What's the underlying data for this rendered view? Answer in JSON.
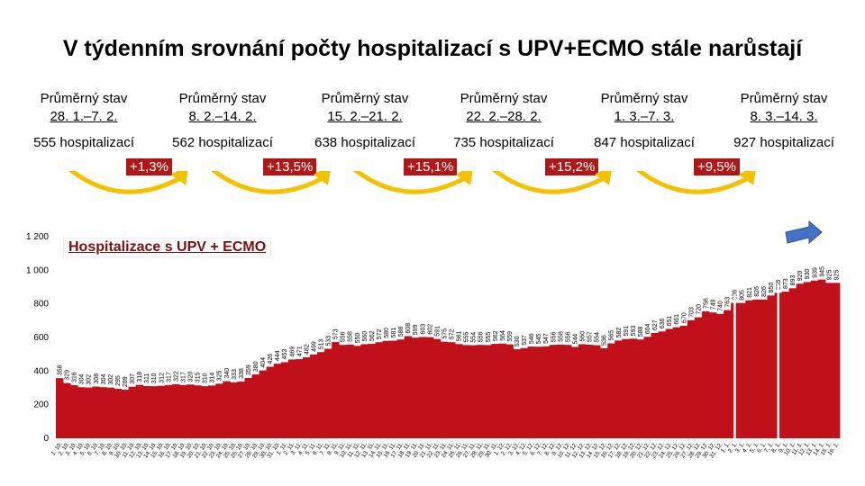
{
  "title": "V týdenním srovnání počty hospitalizací s UPV+ECMO stále narůstají",
  "periods": [
    {
      "label": "Průměrný stav",
      "range": "28. 1.–7. 2.",
      "count": "555 hospitalizací"
    },
    {
      "label": "Průměrný stav",
      "range": "8. 2.–14. 2.",
      "count": "562 hospitalizací"
    },
    {
      "label": "Průměrný stav",
      "range": "15. 2.–21. 2.",
      "count": "638 hospitalizací"
    },
    {
      "label": "Průměrný stav",
      "range": "22. 2.–28. 2.",
      "count": "735 hospitalizací"
    },
    {
      "label": "Průměrný stav",
      "range": "1. 3.–7. 3.",
      "count": "847 hospitalizací"
    },
    {
      "label": "Průměrný stav",
      "range": "8. 3.–14. 3.",
      "count": "927 hospitalizací"
    }
  ],
  "changes": [
    "+1,3%",
    "+13,5%",
    "+15,1%",
    "+15,2%",
    "+9,5%"
  ],
  "colors": {
    "bar": "#c0111a",
    "arrow": "#f2c200",
    "change_bg": "#b01818",
    "blue_arrow": "#4472c4"
  },
  "chart_data": {
    "type": "bar",
    "series_label": "Hospitalizace s UPV + ECMO",
    "ylim": [
      0,
      1200
    ],
    "yticks": [
      "0",
      "200",
      "400",
      "600",
      "800",
      "1 000",
      "1 200"
    ],
    "values": [
      358,
      329,
      316,
      304,
      302,
      308,
      304,
      302,
      295,
      289,
      307,
      318,
      311,
      310,
      312,
      317,
      322,
      317,
      320,
      315,
      310,
      314,
      325,
      340,
      333,
      338,
      359,
      380,
      404,
      426,
      444,
      453,
      469,
      471,
      482,
      499,
      513,
      533,
      573,
      556,
      558,
      550,
      560,
      562,
      572,
      580,
      581,
      588,
      608,
      599,
      603,
      602,
      591,
      575,
      572,
      561,
      555,
      554,
      556,
      555,
      562,
      564,
      559,
      530,
      537,
      546,
      545,
      547,
      556,
      558,
      556,
      544,
      560,
      557,
      554,
      536,
      565,
      582,
      591,
      593,
      588,
      604,
      627,
      636,
      651,
      661,
      670,
      703,
      720,
      756,
      749,
      740,
      763,
      806,
      805,
      821,
      826,
      826,
      850,
      866,
      873,
      893,
      920,
      930,
      939,
      945,
      925,
      925
    ],
    "x_tick_labels": [
      "1. 10.",
      "2. 10.",
      "3. 10.",
      "4. 10.",
      "5. 10.",
      "6. 10.",
      "7. 10.",
      "8. 10.",
      "9. 10.",
      "10. 10.",
      "11. 10.",
      "12. 10.",
      "13. 10.",
      "14. 10.",
      "15. 10.",
      "16. 10.",
      "17. 10.",
      "18. 10.",
      "19. 10.",
      "20. 10.",
      "21. 10.",
      "22. 10.",
      "23. 10.",
      "24. 10.",
      "25. 10.",
      "26. 10.",
      "27. 10.",
      "28. 10.",
      "29. 10.",
      "30. 10.",
      "31. 10.",
      "1. 11.",
      "2. 11.",
      "3. 11.",
      "4. 11.",
      "5. 11.",
      "6. 11.",
      "7. 11.",
      "8. 11.",
      "9. 11.",
      "10. 11.",
      "11. 11.",
      "12. 11.",
      "13. 11.",
      "14. 11.",
      "15. 11.",
      "16. 11.",
      "17. 11.",
      "18. 11.",
      "19. 11.",
      "20. 11.",
      "21. 11.",
      "22. 11.",
      "23. 11.",
      "24. 11.",
      "25. 11.",
      "26. 11.",
      "27. 11.",
      "28. 11.",
      "29. 11.",
      "30. 11.",
      "1. 12.",
      "2. 12.",
      "3. 12.",
      "4. 12.",
      "5. 12.",
      "6. 12.",
      "7. 12.",
      "8. 12.",
      "9. 12.",
      "10. 12.",
      "11. 12.",
      "12. 12.",
      "13. 12.",
      "14. 12.",
      "15. 12.",
      "16. 12.",
      "17. 12.",
      "18. 12.",
      "19. 12.",
      "20. 12.",
      "21. 12.",
      "22. 12.",
      "23. 12.",
      "24. 12.",
      "25. 12.",
      "26. 12.",
      "27. 12.",
      "28. 12.",
      "29. 12.",
      "30. 12.",
      "31. 12.",
      "1. 1.",
      "2. 1.",
      "3. 1.",
      "4. 1.",
      "5. 1.",
      "6. 1.",
      "7. 1.",
      "8. 1.",
      "9. 1.",
      "10. 1.",
      "11. 1.",
      "12. 1.",
      "13. 1.",
      "14. 1.",
      "15. 1.",
      "16. 1."
    ],
    "grid": false
  }
}
